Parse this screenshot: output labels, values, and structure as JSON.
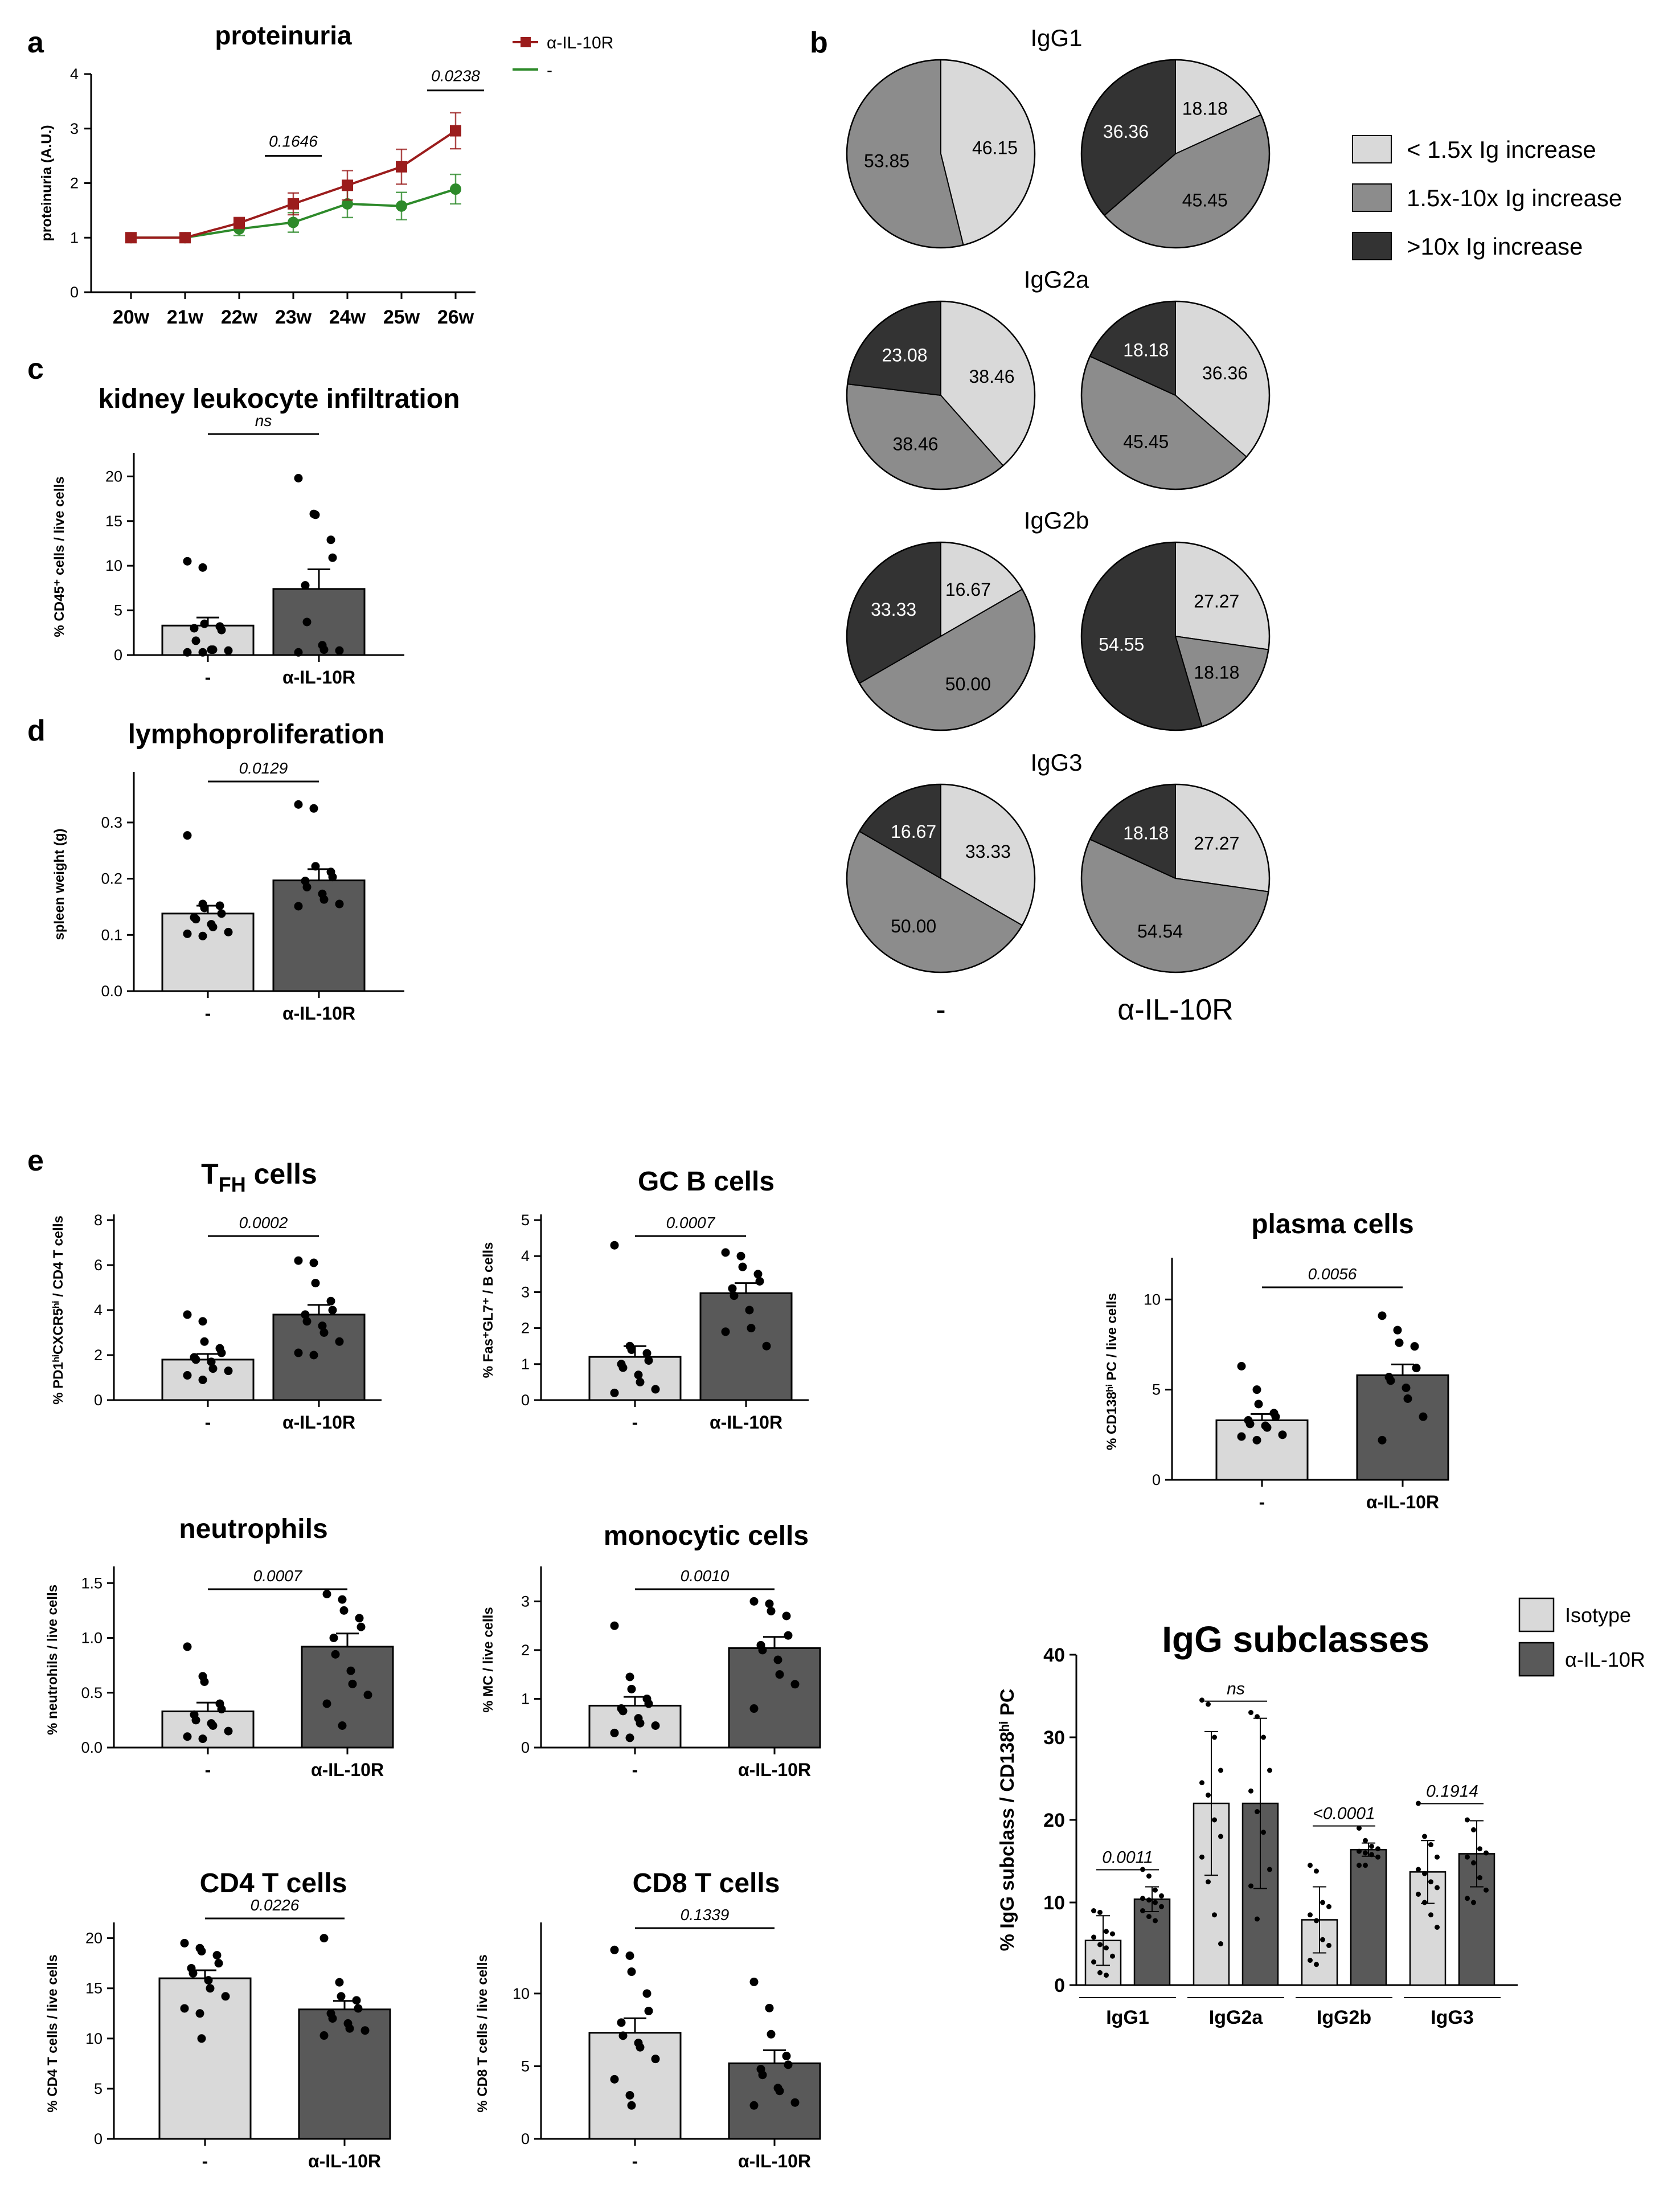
{
  "colors": {
    "red": "#9b1c1c",
    "green": "#2d8a2a",
    "bar_light": "#d9d9d9",
    "bar_dark": "#595959",
    "pie_light": "#d9d9d9",
    "pie_mid": "#8c8c8c",
    "pie_dark": "#333333",
    "axis": "#000000"
  },
  "panels": {
    "a": "a",
    "b": "b",
    "c": "c",
    "d": "d",
    "e": "e"
  },
  "chart_data": [
    {
      "id": "proteinuria",
      "type": "line",
      "title": "proteinuria",
      "ylabel": "proteinuria (A.U.)",
      "xlabel": "",
      "categories": [
        "20w",
        "21w",
        "22w",
        "23w",
        "24w",
        "25w",
        "26w"
      ],
      "ylim": [
        0,
        4
      ],
      "yticks": [
        0,
        1,
        2,
        3,
        4
      ],
      "series": [
        {
          "name": "α-IL-10R",
          "values": [
            1.0,
            1.0,
            1.27,
            1.62,
            1.96,
            2.3,
            2.96
          ],
          "errors": [
            0.03,
            0.03,
            0.1,
            0.2,
            0.27,
            0.32,
            0.33
          ],
          "color": "#9b1c1c",
          "marker": "square"
        },
        {
          "name": "-",
          "values": [
            1.0,
            1.0,
            1.16,
            1.28,
            1.62,
            1.58,
            1.89
          ],
          "errors": [
            0.03,
            0.03,
            0.12,
            0.18,
            0.25,
            0.25,
            0.27
          ],
          "color": "#2d8a2a",
          "marker": "circle"
        }
      ],
      "annotations": [
        {
          "text": "0.1646",
          "x_from": "23w",
          "x_to": "23w",
          "y": 2.5
        },
        {
          "text": "0.0238",
          "x_from": "26w",
          "x_to": "26w",
          "y": 3.7
        }
      ]
    },
    {
      "id": "kidney",
      "type": "bar",
      "title": "kidney leukocyte infiltration",
      "ylabel": "% CD45⁺ cells / live cells",
      "categories": [
        "-",
        "α-IL-10R"
      ],
      "values": [
        3.3,
        7.4
      ],
      "errors": [
        0.9,
        2.2
      ],
      "ylim": [
        0,
        22
      ],
      "yticks": [
        0,
        5,
        10,
        15,
        20
      ],
      "points": [
        [
          10.5,
          9.8,
          3.5,
          3.2,
          2.8,
          3.0,
          1.6,
          0.6,
          0.6,
          0.5,
          0.3,
          0.3
        ],
        [
          19.8,
          15.8,
          15.7,
          12.9,
          10.9,
          7.8,
          3.7,
          1.1,
          0.6,
          0.5,
          0.3
        ]
      ],
      "pvalue": "ns"
    },
    {
      "id": "spleen",
      "type": "bar",
      "title": "lymphoproliferation",
      "ylabel": "spleen weight (g)",
      "categories": [
        "-",
        "α-IL-10R"
      ],
      "values": [
        0.138,
        0.197
      ],
      "errors": [
        0.014,
        0.02
      ],
      "ylim": [
        0,
        0.38
      ],
      "yticks": [
        0.0,
        0.1,
        0.2,
        0.3
      ],
      "yticklabels": [
        "0.0",
        "0.1",
        "0.2",
        "0.3"
      ],
      "points": [
        [
          0.277,
          0.155,
          0.148,
          0.152,
          0.138,
          0.131,
          0.128,
          0.119,
          0.114,
          0.105,
          0.102,
          0.098
        ],
        [
          0.332,
          0.325,
          0.222,
          0.212,
          0.203,
          0.196,
          0.185,
          0.173,
          0.163,
          0.155,
          0.151
        ]
      ],
      "pvalue": "0.0129"
    },
    {
      "id": "tfh",
      "type": "bar",
      "title": "T",
      "title_sub": "FH",
      "title_rest": " cells",
      "ylabel": "% PD1ʰⁱCXCR5ʰⁱ / CD4 T cells",
      "categories": [
        "-",
        "α-IL-10R"
      ],
      "values": [
        1.8,
        3.8
      ],
      "errors": [
        0.25,
        0.43
      ],
      "ylim": [
        0,
        8
      ],
      "yticks": [
        0,
        2,
        4,
        6,
        8
      ],
      "points": [
        [
          3.8,
          3.5,
          2.6,
          2.3,
          2.1,
          1.9,
          1.8,
          1.7,
          1.4,
          1.3,
          1.1,
          0.9
        ],
        [
          6.2,
          6.1,
          5.2,
          4.4,
          4.0,
          3.8,
          3.5,
          3.3,
          3.0,
          2.6,
          2.1,
          2.0
        ]
      ],
      "pvalue": "0.0002"
    },
    {
      "id": "gcb",
      "type": "bar",
      "title": "GC B cells",
      "ylabel": "% Fas⁺GL7⁺ / B cells",
      "categories": [
        "-",
        "α-IL-10R"
      ],
      "values": [
        1.2,
        2.97
      ],
      "errors": [
        0.3,
        0.28
      ],
      "ylim": [
        0,
        5
      ],
      "yticks": [
        0,
        1,
        2,
        3,
        4,
        5
      ],
      "points": [
        [
          4.3,
          1.5,
          1.4,
          1.3,
          1.1,
          1.0,
          0.9,
          0.7,
          0.5,
          0.3,
          0.2
        ],
        [
          4.1,
          4.0,
          3.7,
          3.5,
          3.3,
          3.1,
          2.9,
          2.5,
          2.0,
          1.5,
          1.9
        ]
      ],
      "pvalue": "0.0007"
    },
    {
      "id": "plasma",
      "type": "bar",
      "title": "plasma cells",
      "ylabel": "% CD138ʰⁱ PC / live cells",
      "categories": [
        "-",
        "α-IL-10R"
      ],
      "values": [
        3.3,
        5.8
      ],
      "errors": [
        0.35,
        0.6
      ],
      "ylim": [
        0,
        12
      ],
      "yticks": [
        0,
        5,
        10
      ],
      "points": [
        [
          6.3,
          5.0,
          4.2,
          3.7,
          3.5,
          3.3,
          3.1,
          3.0,
          2.9,
          2.5,
          2.4,
          2.2
        ],
        [
          9.1,
          8.3,
          7.6,
          7.4,
          6.2,
          5.7,
          5.5,
          5.1,
          4.5,
          3.5,
          2.2
        ]
      ],
      "pvalue": "0.0056"
    },
    {
      "id": "neutro",
      "type": "bar",
      "title": "neutrophils",
      "ylabel": "% neutrohils / live cells",
      "categories": [
        "-",
        "α-IL-10R"
      ],
      "values": [
        0.33,
        0.92
      ],
      "errors": [
        0.08,
        0.12
      ],
      "ylim": [
        0,
        1.6
      ],
      "yticks": [
        0.0,
        0.5,
        1.0,
        1.5
      ],
      "yticklabels": [
        "0.0",
        "0.5",
        "1.0",
        "1.5"
      ],
      "points": [
        [
          0.92,
          0.65,
          0.6,
          0.4,
          0.35,
          0.3,
          0.25,
          0.22,
          0.2,
          0.15,
          0.1,
          0.08
        ],
        [
          1.4,
          1.35,
          1.25,
          1.18,
          1.1,
          1.0,
          0.85,
          0.7,
          0.58,
          0.48,
          0.4,
          0.2
        ]
      ],
      "pvalue": "0.0007"
    },
    {
      "id": "mono",
      "type": "bar",
      "title": "monocytic cells",
      "ylabel": "% MC / live cells",
      "categories": [
        "-",
        "α-IL-10R"
      ],
      "values": [
        0.86,
        2.04
      ],
      "errors": [
        0.18,
        0.23
      ],
      "ylim": [
        0,
        3.6
      ],
      "yticks": [
        0,
        1,
        2,
        3
      ],
      "points": [
        [
          2.5,
          1.45,
          1.2,
          1.0,
          0.9,
          0.8,
          0.75,
          0.6,
          0.5,
          0.45,
          0.3,
          0.2
        ],
        [
          3.0,
          2.95,
          2.8,
          2.7,
          2.3,
          2.1,
          2.0,
          1.8,
          1.5,
          1.3,
          0.8
        ]
      ],
      "pvalue": "0.0010"
    },
    {
      "id": "cd4",
      "type": "bar",
      "title": "CD4 T cells",
      "ylabel": "% CD4 T cells / live cells",
      "categories": [
        "-",
        "α-IL-10R"
      ],
      "values": [
        16.0,
        12.9
      ],
      "errors": [
        0.8,
        0.85
      ],
      "ylim": [
        0,
        21
      ],
      "yticks": [
        0,
        5,
        10,
        15,
        20
      ],
      "points": [
        [
          19.5,
          19.0,
          18.7,
          18.3,
          17.5,
          17.0,
          16.5,
          15.8,
          15.0,
          14.2,
          13.0,
          12.5,
          10.0
        ],
        [
          20.0,
          15.6,
          14.2,
          13.8,
          13.0,
          12.5,
          12.0,
          11.5,
          11.0,
          10.8,
          10.3
        ]
      ],
      "pvalue": "0.0226"
    },
    {
      "id": "cd8",
      "type": "bar",
      "title": "CD8 T cells",
      "ylabel": "% CD8 T cells / live cells",
      "categories": [
        "-",
        "α-IL-10R"
      ],
      "values": [
        7.3,
        5.2
      ],
      "errors": [
        1.0,
        0.9
      ],
      "ylim": [
        0,
        14.5
      ],
      "yticks": [
        0,
        5,
        10
      ],
      "points": [
        [
          13.0,
          12.6,
          11.5,
          10.0,
          8.8,
          8.0,
          7.1,
          6.6,
          6.3,
          5.5,
          4.1,
          3.0,
          2.3
        ],
        [
          10.8,
          9.0,
          7.2,
          5.7,
          5.1,
          4.8,
          4.4,
          3.5,
          3.3,
          2.5,
          2.3
        ]
      ],
      "pvalue": "0.1339"
    },
    {
      "id": "igg_subclass",
      "type": "bar",
      "title": "IgG subclasses",
      "ylabel": "% IgG subclass / CD138ʰⁱ PC",
      "categories": [
        "IgG1",
        "IgG2a",
        "IgG2b",
        "IgG3"
      ],
      "ylim": [
        0,
        40
      ],
      "yticks": [
        0,
        10,
        20,
        30,
        40
      ],
      "series": [
        {
          "name": "Isotype",
          "values": [
            5.4,
            22.0,
            7.9,
            13.7
          ],
          "errors": [
            3.0,
            8.7,
            4.0,
            3.8
          ],
          "color": "#d9d9d9",
          "points": [
            [
              9.0,
              8.8,
              6.5,
              6.2,
              5.8,
              4.9,
              4.5,
              3.5,
              2.8,
              1.5,
              1.2
            ],
            [
              34.5,
              34.0,
              30.0,
              26.0,
              24.5,
              23.0,
              20.0,
              18.0,
              15.5,
              12.5,
              8.5,
              5.0
            ],
            [
              14.5,
              13.8,
              10.0,
              9.5,
              8.5,
              7.8,
              5.5,
              4.8,
              3.0,
              2.5
            ],
            [
              22.0,
              18.0,
              17.0,
              15.5,
              14.0,
              13.5,
              12.5,
              11.8,
              11.0,
              10.0,
              8.5,
              7.0
            ]
          ]
        },
        {
          "name": "α-IL-10R",
          "values": [
            10.4,
            22.0,
            16.4,
            15.9
          ],
          "errors": [
            1.5,
            10.3,
            0.8,
            4.0
          ],
          "color": "#595959",
          "points": [
            [
              14.0,
              13.2,
              11.5,
              10.8,
              10.5,
              10.3,
              10.0,
              9.5,
              9.0,
              8.3,
              7.8
            ],
            [
              33.0,
              32.5,
              30.0,
              26.0,
              23.5,
              21.0,
              18.5,
              14.0,
              12.0,
              8.0
            ],
            [
              19.0,
              17.5,
              16.8,
              16.5,
              16.2,
              16.0,
              15.8,
              15.5,
              14.5,
              14.5
            ],
            [
              20.0,
              18.8,
              16.5,
              16.0,
              15.5,
              14.8,
              13.0,
              11.5,
              10.5,
              10.0
            ]
          ]
        }
      ],
      "pvalues": [
        "0.0011",
        "ns",
        "<0.0001",
        "0.1914"
      ]
    },
    {
      "id": "pies",
      "type": "pie",
      "row_labels": [
        "IgG1",
        "IgG2a",
        "IgG2b",
        "IgG3"
      ],
      "column_labels": [
        "-",
        "α-IL-10R"
      ],
      "legend": [
        "< 1.5x Ig increase",
        "1.5x-10x Ig increase",
        ">10x Ig increase"
      ],
      "pies": [
        [
          [
            46.15,
            53.85,
            0
          ],
          [
            18.18,
            45.45,
            36.36
          ]
        ],
        [
          [
            38.46,
            38.46,
            23.08
          ],
          [
            36.36,
            45.45,
            18.18
          ]
        ],
        [
          [
            16.67,
            50.0,
            33.33
          ],
          [
            27.27,
            18.18,
            54.55
          ]
        ],
        [
          [
            33.33,
            50.0,
            16.67
          ],
          [
            27.27,
            54.54,
            18.18
          ]
        ]
      ],
      "labels": [
        [
          [
            "46.15",
            "53.85",
            ""
          ],
          [
            "18.18",
            "45.45",
            "36.36"
          ]
        ],
        [
          [
            "38.46",
            "38.46",
            "23.08"
          ],
          [
            "36.36",
            "45.45",
            "18.18"
          ]
        ],
        [
          [
            "16.67",
            "50.00",
            "33.33"
          ],
          [
            "27.27",
            "18.18",
            "54.55"
          ]
        ],
        [
          [
            "33.33",
            "50.00",
            "16.67"
          ],
          [
            "27.27",
            "54.54",
            "18.18"
          ]
        ]
      ]
    }
  ]
}
